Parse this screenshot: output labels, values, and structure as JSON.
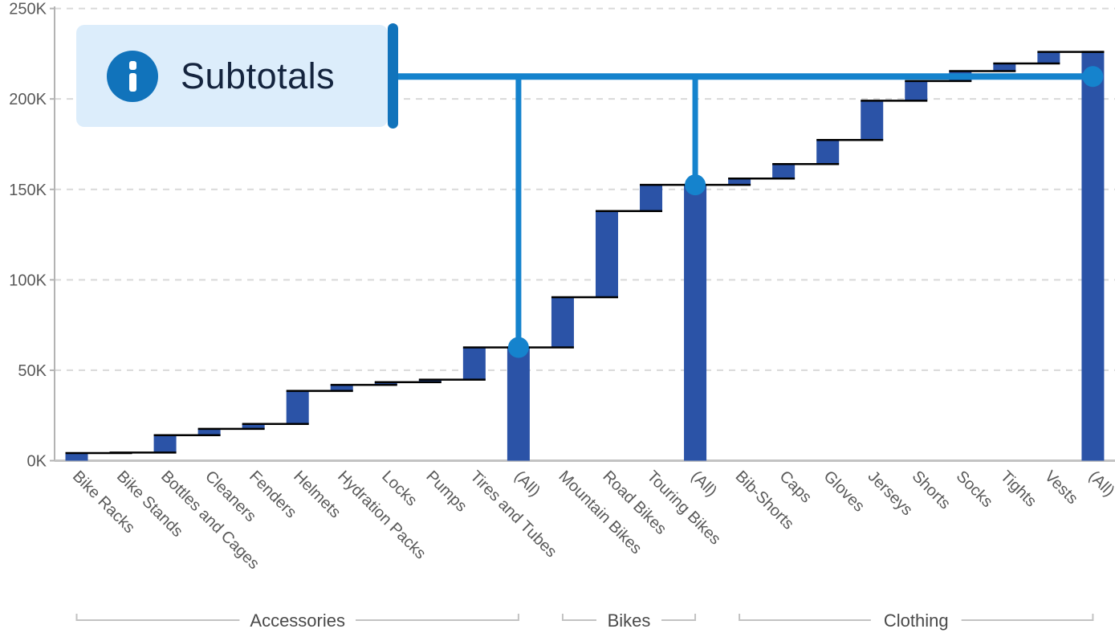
{
  "chart_data": {
    "type": "bar",
    "subtype": "waterfall",
    "title": "",
    "xlabel": "",
    "ylabel": "",
    "unit": "K",
    "ylim_k": [
      0,
      250
    ],
    "y_ticks": [
      "0K",
      "50K",
      "100K",
      "150K",
      "200K",
      "250K"
    ],
    "grid": "dashed-horizontal",
    "groups": [
      {
        "label": "Accessories",
        "items": [
          {
            "label": "Bike Racks",
            "value_k": 4.2
          },
          {
            "label": "Bike Stands",
            "value_k": 0.3
          },
          {
            "label": "Bottles and Cages",
            "value_k": 9.6
          },
          {
            "label": "Cleaners",
            "value_k": 3.5
          },
          {
            "label": "Fenders",
            "value_k": 2.7
          },
          {
            "label": "Helmets",
            "value_k": 18.3
          },
          {
            "label": "Hydration Packs",
            "value_k": 3.3
          },
          {
            "label": "Locks",
            "value_k": 1.5
          },
          {
            "label": "Pumps",
            "value_k": 1.4
          },
          {
            "label": "Tires and Tubes",
            "value_k": 17.8
          },
          {
            "label": "(All)",
            "is_subtotal": true,
            "running_total_k": 62.6
          }
        ]
      },
      {
        "label": "Bikes",
        "items": [
          {
            "label": "Mountain Bikes",
            "value_k": 27.8
          },
          {
            "label": "Road Bikes",
            "value_k": 47.6
          },
          {
            "label": "Touring Bikes",
            "value_k": 14.5
          },
          {
            "label": "(All)",
            "is_subtotal": true,
            "running_total_k": 152.5
          }
        ]
      },
      {
        "label": "Clothing",
        "items": [
          {
            "label": "Bib-Shorts",
            "value_k": 3.5
          },
          {
            "label": "Caps",
            "value_k": 8.0
          },
          {
            "label": "Gloves",
            "value_k": 13.3
          },
          {
            "label": "Jerseys",
            "value_k": 21.7
          },
          {
            "label": "Shorts",
            "value_k": 10.9
          },
          {
            "label": "Socks",
            "value_k": 5.5
          },
          {
            "label": "Tights",
            "value_k": 4.2
          },
          {
            "label": "Vests",
            "value_k": 6.4
          },
          {
            "label": "(All)",
            "is_subtotal": true,
            "running_total_k": 226.0
          }
        ]
      }
    ],
    "annotation": {
      "label": "Subtotals",
      "icon": "info-icon",
      "line_level_k": 212.4,
      "targets": [
        "(All) Accessories",
        "(All) Bikes",
        "(All) Clothing"
      ]
    },
    "legend": "none",
    "colors": {
      "bar": "#2b53a7",
      "connector": "#000000",
      "marker": "#1583cd",
      "callout_bg": "#dcedfb",
      "callout_accent": "#1173bb",
      "callout_text": "#14243e",
      "axis": "#b3b3b3",
      "baseline": "#c3c3c3",
      "gridline": "#d9d9d9",
      "tick_label": "#595959",
      "group_label": "#4a4a4a",
      "bracket": "#c2c2c2"
    }
  }
}
